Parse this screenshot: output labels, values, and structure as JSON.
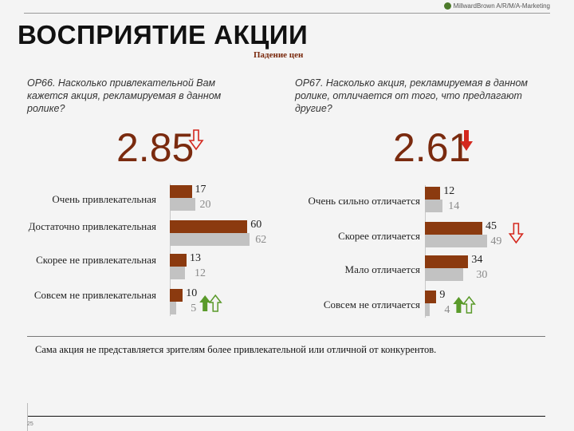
{
  "header": {
    "logo_text": "MillwardBrown A/R/M/A-Marketing",
    "title": "ВОСПРИЯТИЕ АКЦИИ",
    "subtitle": "Падение цен"
  },
  "colors": {
    "current": "#8b3a0f",
    "previous": "#c2c2c2",
    "arrow_down": "#d4281e",
    "arrow_up": "#5a9a2a"
  },
  "chart_data": [
    {
      "type": "bar",
      "question": "OP66. Насколько привлекательной Вам кажется акция, рекламируемая в данном ролике?",
      "score": "2.85",
      "score_trend": "down",
      "categories": [
        "Очень привлекательная",
        "Достаточно привлекательная",
        "Скорее не привлекательная",
        "Совсем не привлекательная"
      ],
      "series": [
        {
          "values": [
            17,
            60,
            13,
            10
          ]
        },
        {
          "values": [
            20,
            62,
            12,
            5
          ]
        }
      ],
      "value_labels": [
        [
          "17",
          "60",
          "13",
          "10"
        ],
        [
          "20",
          "62",
          "12",
          "5"
        ]
      ],
      "trend_markers": [
        "",
        "",
        "",
        "up"
      ]
    },
    {
      "type": "bar",
      "question": "OP67. Насколько акция, рекламируемая в данном ролике, отличается от того, что предлагают другие?",
      "score": "2.61",
      "score_trend": "down",
      "categories": [
        "Очень сильно отличается",
        "Скорее отличается",
        "Мало отличается",
        "Совсем не отличается"
      ],
      "series": [
        {
          "values": [
            12,
            45,
            34,
            9
          ]
        },
        {
          "values": [
            14,
            49,
            30,
            4
          ]
        }
      ],
      "value_labels": [
        [
          "12",
          "45",
          "34",
          "9"
        ],
        [
          "14",
          "49",
          "30",
          "4"
        ]
      ],
      "trend_markers": [
        "",
        "down",
        "",
        "up"
      ]
    }
  ],
  "conclusion": "Сама акция не представляется зрителям более привлекательной или отличной от конкурентов.",
  "slide_number": "25"
}
